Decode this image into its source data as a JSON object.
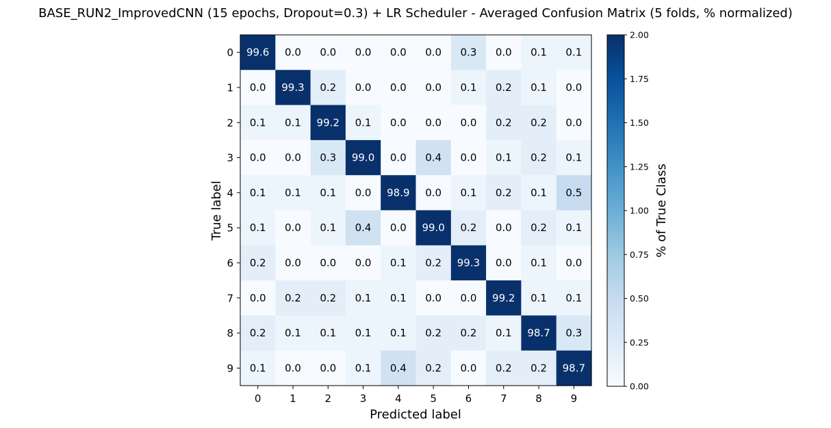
{
  "chart_data": {
    "type": "heatmap",
    "title": "BASE_RUN2_ImprovedCNN (15 epochs, Dropout=0.3) + LR Scheduler - Averaged Confusion Matrix (5 folds, % normalized)",
    "xlabel": "Predicted label",
    "ylabel": "True label",
    "x_categories": [
      "0",
      "1",
      "2",
      "3",
      "4",
      "5",
      "6",
      "7",
      "8",
      "9"
    ],
    "y_categories": [
      "0",
      "1",
      "2",
      "3",
      "4",
      "5",
      "6",
      "7",
      "8",
      "9"
    ],
    "values": [
      [
        99.6,
        0.0,
        0.0,
        0.0,
        0.0,
        0.0,
        0.3,
        0.0,
        0.1,
        0.1
      ],
      [
        0.0,
        99.3,
        0.2,
        0.0,
        0.0,
        0.0,
        0.1,
        0.2,
        0.1,
        0.0
      ],
      [
        0.1,
        0.1,
        99.2,
        0.1,
        0.0,
        0.0,
        0.0,
        0.2,
        0.2,
        0.0
      ],
      [
        0.0,
        0.0,
        0.3,
        99.0,
        0.0,
        0.4,
        0.0,
        0.1,
        0.2,
        0.1
      ],
      [
        0.1,
        0.1,
        0.1,
        0.0,
        98.9,
        0.0,
        0.1,
        0.2,
        0.1,
        0.5
      ],
      [
        0.1,
        0.0,
        0.1,
        0.4,
        0.0,
        99.0,
        0.2,
        0.0,
        0.2,
        0.1
      ],
      [
        0.2,
        0.0,
        0.0,
        0.0,
        0.1,
        0.2,
        99.3,
        0.0,
        0.1,
        0.0
      ],
      [
        0.0,
        0.2,
        0.2,
        0.1,
        0.1,
        0.0,
        0.0,
        99.2,
        0.1,
        0.1
      ],
      [
        0.2,
        0.1,
        0.1,
        0.1,
        0.1,
        0.2,
        0.2,
        0.1,
        98.7,
        0.3
      ],
      [
        0.1,
        0.0,
        0.0,
        0.1,
        0.4,
        0.2,
        0.0,
        0.2,
        0.2,
        98.7
      ]
    ],
    "colormap": "Blues",
    "color_range": [
      0,
      2
    ],
    "colorbar": {
      "label": "% of True Class",
      "ticks": [
        "0.00",
        "0.25",
        "0.50",
        "0.75",
        "1.00",
        "1.25",
        "1.50",
        "1.75",
        "2.00"
      ]
    },
    "grid": false
  }
}
